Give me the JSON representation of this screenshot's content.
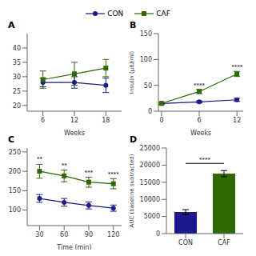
{
  "chart_data": [
    {
      "type": "line",
      "title": "A",
      "legend": "top",
      "grid": false,
      "x": [
        6,
        12,
        18
      ],
      "xlabel": "Weeks",
      "xlim": [
        3,
        21
      ],
      "xticks": [
        6,
        12,
        18
      ],
      "ylim": [
        18,
        45
      ],
      "yticks": [
        20,
        25,
        30,
        35,
        40
      ],
      "series": [
        {
          "name": "CON",
          "color": "#1a1a8c",
          "marker": "circle",
          "values": [
            28,
            28,
            27
          ],
          "errors": [
            1.5,
            2,
            2.5
          ]
        },
        {
          "name": "CAF",
          "color": "#2d6a00",
          "marker": "square",
          "values": [
            29,
            31,
            33
          ],
          "errors": [
            3,
            4,
            3
          ]
        }
      ]
    },
    {
      "type": "line",
      "title": "B",
      "grid": false,
      "x": [
        0,
        6,
        12
      ],
      "xlabel": "Weeks",
      "ylabel": "Insulin (μIU/ml)",
      "xlim": [
        -0.5,
        13
      ],
      "xticks": [
        0,
        6,
        12
      ],
      "ylim": [
        0,
        150
      ],
      "yticks": [
        0,
        50,
        100,
        150
      ],
      "series": [
        {
          "name": "CON",
          "color": "#1a1a8c",
          "marker": "circle",
          "values": [
            15,
            18,
            22
          ],
          "errors": [
            2,
            2,
            3
          ]
        },
        {
          "name": "CAF",
          "color": "#2d6a00",
          "marker": "square",
          "values": [
            15,
            38,
            72
          ],
          "errors": [
            2,
            4,
            5
          ]
        }
      ],
      "annotations": [
        {
          "x": 6,
          "y": 44,
          "text": "****"
        },
        {
          "x": 12,
          "y": 79,
          "text": "****"
        }
      ]
    },
    {
      "type": "line",
      "title": "C",
      "grid": false,
      "x": [
        30,
        60,
        90,
        120
      ],
      "xlabel": "Time (min)",
      "xlim": [
        15,
        130
      ],
      "xticks": [
        30,
        60,
        90,
        120
      ],
      "ylim": [
        60,
        260
      ],
      "yticks": [
        100,
        150,
        200,
        250
      ],
      "series": [
        {
          "name": "CON",
          "color": "#1a1a8c",
          "marker": "circle",
          "values": [
            130,
            120,
            112,
            105
          ],
          "errors": [
            10,
            10,
            9,
            8
          ]
        },
        {
          "name": "CAF",
          "color": "#2d6a00",
          "marker": "square",
          "values": [
            200,
            188,
            172,
            168
          ],
          "errors": [
            18,
            15,
            13,
            13
          ]
        }
      ],
      "annotations": [
        {
          "x": 30,
          "y": 222,
          "text": "**"
        },
        {
          "x": 60,
          "y": 207,
          "text": "**"
        },
        {
          "x": 90,
          "y": 188,
          "text": "***"
        },
        {
          "x": 120,
          "y": 184,
          "text": "****"
        }
      ]
    },
    {
      "type": "bar",
      "title": "D",
      "grid": false,
      "categories": [
        "CON",
        "CAF"
      ],
      "values": [
        6300,
        17500
      ],
      "errors": [
        700,
        900
      ],
      "colors": [
        "#1a1a8c",
        "#2d6a00"
      ],
      "ylabel": "AUC (baseline subtracted)",
      "ylim": [
        0,
        25000
      ],
      "yticks": [
        0,
        5000,
        10000,
        15000,
        20000,
        25000
      ],
      "annotations": [
        {
          "from": "CON",
          "to": "CAF",
          "y": 20500,
          "text": "****"
        }
      ]
    }
  ]
}
